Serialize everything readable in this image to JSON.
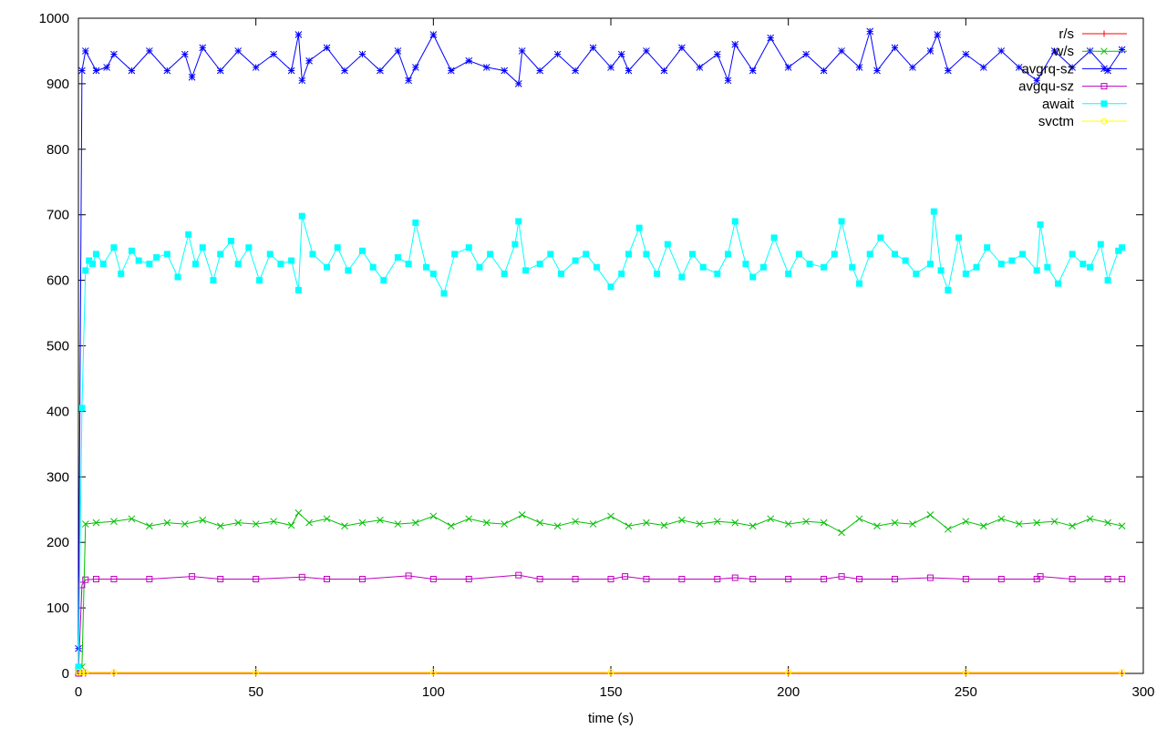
{
  "chart_data": {
    "type": "line",
    "title": "",
    "xlabel": "time (s)",
    "ylabel": "",
    "xlim": [
      0,
      300
    ],
    "ylim": [
      0,
      1000
    ],
    "x_ticks": [
      0,
      50,
      100,
      150,
      200,
      250,
      300
    ],
    "y_ticks": [
      0,
      100,
      200,
      300,
      400,
      500,
      600,
      700,
      800,
      900,
      1000
    ],
    "grid": false,
    "legend_position": "top-right",
    "series": [
      {
        "name": "r/s",
        "color": "#ff0000",
        "marker": "plus",
        "x": [
          0,
          1,
          2,
          10,
          50,
          100,
          150,
          200,
          250,
          294
        ],
        "values": [
          0,
          0,
          0,
          0,
          0,
          0,
          0,
          0,
          0,
          0
        ]
      },
      {
        "name": "w/s",
        "color": "#00c000",
        "marker": "cross",
        "x": [
          0,
          1,
          2,
          5,
          10,
          15,
          20,
          25,
          30,
          35,
          40,
          45,
          50,
          55,
          60,
          62,
          65,
          70,
          75,
          80,
          85,
          90,
          95,
          100,
          105,
          110,
          115,
          120,
          125,
          130,
          135,
          140,
          145,
          150,
          155,
          160,
          165,
          170,
          175,
          180,
          185,
          190,
          195,
          200,
          205,
          210,
          215,
          220,
          225,
          230,
          235,
          240,
          245,
          250,
          255,
          260,
          265,
          270,
          275,
          280,
          285,
          290,
          294
        ],
        "values": [
          5,
          10,
          228,
          230,
          232,
          236,
          225,
          230,
          228,
          234,
          225,
          230,
          228,
          232,
          226,
          245,
          230,
          236,
          225,
          230,
          234,
          228,
          230,
          240,
          225,
          236,
          230,
          228,
          242,
          230,
          225,
          232,
          228,
          240,
          225,
          230,
          226,
          234,
          228,
          232,
          230,
          225,
          236,
          228,
          232,
          230,
          215,
          236,
          225,
          230,
          228,
          242,
          220,
          232,
          225,
          236,
          228,
          230,
          232,
          225,
          236,
          230,
          225
        ]
      },
      {
        "name": "avgrq-sz",
        "color": "#0000ff",
        "marker": "star",
        "x": [
          0,
          1,
          2,
          5,
          8,
          10,
          15,
          20,
          25,
          30,
          32,
          35,
          40,
          45,
          50,
          55,
          60,
          62,
          63,
          65,
          70,
          75,
          80,
          85,
          90,
          93,
          95,
          100,
          105,
          110,
          115,
          120,
          124,
          125,
          130,
          135,
          140,
          145,
          150,
          153,
          155,
          160,
          165,
          170,
          175,
          180,
          183,
          185,
          190,
          195,
          200,
          205,
          210,
          215,
          220,
          223,
          225,
          230,
          235,
          240,
          242,
          245,
          250,
          255,
          260,
          265,
          270,
          275,
          280,
          285,
          290,
          294
        ],
        "values": [
          38,
          920,
          950,
          920,
          925,
          945,
          920,
          950,
          920,
          945,
          910,
          955,
          920,
          950,
          925,
          945,
          920,
          975,
          905,
          935,
          955,
          920,
          945,
          920,
          950,
          905,
          925,
          975,
          920,
          935,
          925,
          920,
          900,
          950,
          920,
          945,
          920,
          955,
          925,
          945,
          920,
          950,
          920,
          955,
          925,
          945,
          905,
          960,
          920,
          970,
          925,
          945,
          920,
          950,
          925,
          980,
          920,
          955,
          925,
          950,
          975,
          920,
          945,
          925,
          950,
          925,
          905,
          950,
          925,
          950,
          920,
          952
        ]
      },
      {
        "name": "avgqu-sz",
        "color": "#c000c0",
        "marker": "square",
        "x": [
          0,
          1,
          2,
          5,
          10,
          20,
          32,
          40,
          50,
          63,
          70,
          80,
          93,
          100,
          110,
          124,
          130,
          140,
          150,
          154,
          160,
          170,
          180,
          185,
          190,
          200,
          210,
          215,
          220,
          230,
          240,
          250,
          260,
          270,
          271,
          280,
          290,
          294
        ],
        "values": [
          0,
          135,
          143,
          144,
          144,
          144,
          148,
          144,
          144,
          147,
          144,
          144,
          149,
          144,
          144,
          150,
          144,
          144,
          144,
          148,
          144,
          144,
          144,
          146,
          144,
          144,
          144,
          148,
          144,
          144,
          146,
          144,
          144,
          144,
          148,
          144,
          144,
          144
        ]
      },
      {
        "name": "await",
        "color": "#00ffff",
        "marker": "filled-square",
        "x": [
          0,
          1,
          2,
          3,
          4,
          5,
          7,
          10,
          12,
          15,
          17,
          20,
          22,
          25,
          28,
          31,
          33,
          35,
          38,
          40,
          43,
          45,
          48,
          51,
          54,
          57,
          60,
          62,
          63,
          66,
          70,
          73,
          76,
          80,
          83,
          86,
          90,
          93,
          95,
          98,
          100,
          103,
          106,
          110,
          113,
          116,
          120,
          123,
          124,
          126,
          130,
          133,
          136,
          140,
          143,
          146,
          150,
          153,
          155,
          158,
          160,
          163,
          166,
          170,
          173,
          176,
          180,
          183,
          185,
          188,
          190,
          193,
          196,
          200,
          203,
          206,
          210,
          213,
          215,
          218,
          220,
          223,
          226,
          230,
          233,
          236,
          240,
          241,
          243,
          245,
          248,
          250,
          253,
          256,
          260,
          263,
          266,
          270,
          271,
          273,
          276,
          280,
          283,
          285,
          288,
          290,
          293,
          294
        ],
        "values": [
          10,
          405,
          615,
          630,
          625,
          640,
          625,
          650,
          610,
          645,
          630,
          625,
          635,
          640,
          605,
          670,
          625,
          650,
          600,
          640,
          660,
          625,
          650,
          600,
          640,
          625,
          630,
          585,
          698,
          640,
          620,
          650,
          615,
          645,
          620,
          600,
          635,
          625,
          688,
          620,
          610,
          580,
          640,
          650,
          620,
          640,
          610,
          655,
          690,
          615,
          625,
          640,
          610,
          630,
          640,
          620,
          590,
          610,
          640,
          680,
          640,
          610,
          655,
          605,
          640,
          620,
          610,
          640,
          690,
          625,
          605,
          620,
          665,
          610,
          640,
          625,
          620,
          640,
          690,
          620,
          595,
          640,
          665,
          640,
          630,
          610,
          625,
          705,
          615,
          585,
          665,
          610,
          620,
          650,
          625,
          630,
          640,
          615,
          685,
          620,
          595,
          640,
          625,
          620,
          655,
          600,
          645,
          650
        ]
      },
      {
        "name": "svctm",
        "color": "#ffff00",
        "marker": "circle",
        "x": [
          0,
          1,
          2,
          10,
          50,
          100,
          150,
          200,
          250,
          294
        ],
        "values": [
          2,
          2,
          2,
          2,
          2,
          2,
          2,
          2,
          2,
          2
        ]
      }
    ]
  }
}
